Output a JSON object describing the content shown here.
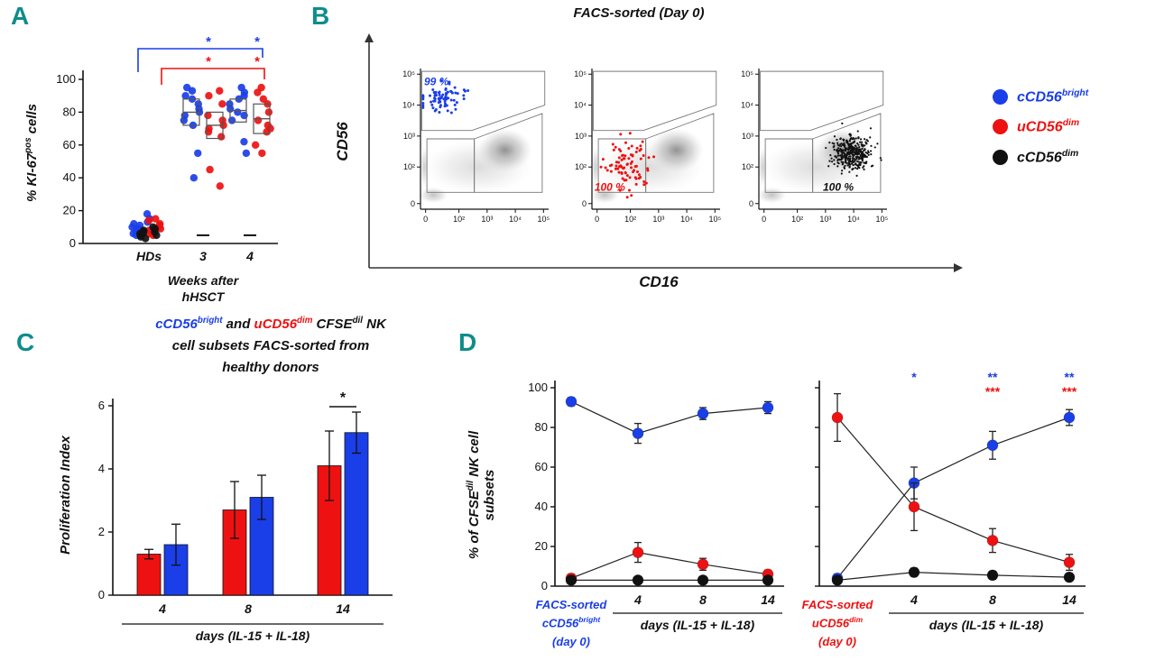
{
  "figure": {
    "background": "#ffffff",
    "panel_letter_color": "#0f8c8c"
  },
  "colors": {
    "blue": "#1a3ee8",
    "red": "#ee1111",
    "black": "#111111"
  },
  "panelA": {
    "letter": "A",
    "ylabel": [
      {
        "t": "% KI-67"
      },
      {
        "t": "pos",
        "sup": true
      },
      {
        "t": " cells"
      }
    ]
  },
  "panelB": {
    "letter": "B",
    "title": "FACS-sorted (Day 0)",
    "ylabel": "CD56",
    "xlabel": "CD16"
  },
  "panelC": {
    "letter": "C",
    "ylabel": "Proliferation Index",
    "title": [
      {
        "t": "cCD56",
        "c": "#1a3ee8"
      },
      {
        "t": "bright",
        "sup": true,
        "c": "#1a3ee8"
      },
      {
        "t": " and ",
        "c": "#111111"
      },
      {
        "t": "uCD56",
        "c": "#ee1111"
      },
      {
        "t": "dim",
        "sup": true,
        "c": "#ee1111"
      },
      {
        "t": " CFSE",
        "c": "#111111"
      },
      {
        "t": "dil",
        "sup": true,
        "c": "#111111"
      },
      {
        "t": " NK",
        "c": "#111111"
      },
      {
        "br": true
      },
      {
        "t": "cell subsets FACS-sorted from",
        "c": "#111111"
      },
      {
        "br": true
      },
      {
        "t": "healthy donors",
        "c": "#111111"
      }
    ]
  },
  "panelD": {
    "letter": "D",
    "ylabel": [
      {
        "t": "% of CFSE"
      },
      {
        "t": "dil",
        "sup": true
      },
      {
        "t": " NK  cell"
      },
      {
        "br": true
      },
      {
        "t": "subsets"
      }
    ],
    "left_x0_label": [
      {
        "t": "FACS-sorted"
      },
      {
        "br": true
      },
      {
        "t": "cCD56"
      },
      {
        "t": "bright",
        "sup": true
      },
      {
        "br": true
      },
      {
        "t": "(day 0)"
      }
    ],
    "right_x0_label": [
      {
        "t": "FACS-sorted"
      },
      {
        "br": true
      },
      {
        "t": "uCD56"
      },
      {
        "t": "dim",
        "sup": true
      },
      {
        "br": true
      },
      {
        "t": "(day 0)"
      }
    ]
  },
  "legend": {
    "items": [
      {
        "name": "cCD56bright",
        "color": "#1a3ee8",
        "text": [
          {
            "t": "cCD56"
          },
          {
            "t": "bright",
            "sup": true
          }
        ]
      },
      {
        "name": "uCD56dim",
        "color": "#ee1111",
        "text": [
          {
            "t": "uCD56"
          },
          {
            "t": "dim",
            "sup": true
          }
        ]
      },
      {
        "name": "cCD56dim",
        "color": "#111111",
        "text": [
          {
            "t": "cCD56"
          },
          {
            "t": "dim",
            "sup": true
          }
        ]
      }
    ]
  },
  "chart_data": [
    {
      "id": "A",
      "type": "scatter",
      "ylabel": "% KI-67pos cells",
      "ylim": [
        0,
        100
      ],
      "yticks": [
        0,
        20,
        40,
        60,
        80,
        100
      ],
      "categories": [
        "HDs",
        "3",
        "4"
      ],
      "xlabel_line1": "Weeks after",
      "xlabel_line2": "hHSCT",
      "series": [
        {
          "name": "cCD56bright",
          "color": "#1a3ee8",
          "values": [
            [
              5,
              6,
              7,
              8,
              9,
              10,
              11,
              12,
              13,
              15,
              18,
              8
            ],
            [
              40,
              55,
              72,
              75,
              78,
              80,
              82,
              85,
              88,
              90,
              93,
              95
            ],
            [
              55,
              62,
              75,
              78,
              80,
              82,
              85,
              88,
              90,
              92,
              95
            ]
          ]
        },
        {
          "name": "uCD56dim",
          "color": "#ee1111",
          "values": [
            [
              5,
              6,
              7,
              8,
              9,
              10,
              11,
              12,
              14,
              15
            ],
            [
              35,
              45,
              65,
              68,
              70,
              72,
              75,
              78,
              85,
              90,
              93
            ],
            [
              55,
              60,
              68,
              70,
              72,
              75,
              80,
              85,
              88,
              92,
              95
            ]
          ]
        },
        {
          "name": "cCD56dim",
          "color": "#111111",
          "values": [
            [
              3,
              4,
              5,
              5,
              6,
              6,
              7,
              7,
              8,
              9,
              10
            ],
            [],
            []
          ]
        }
      ],
      "mean_boxes": [
        {
          "cat": 1,
          "series": 0,
          "mean": 80,
          "sd": 8
        },
        {
          "cat": 1,
          "series": 1,
          "mean": 72,
          "sd": 8
        },
        {
          "cat": 2,
          "series": 0,
          "mean": 81,
          "sd": 7
        },
        {
          "cat": 2,
          "series": 1,
          "mean": 76,
          "sd": 9
        }
      ],
      "dashes": [
        {
          "cat": 1,
          "y": 5
        },
        {
          "cat": 2,
          "y": 5
        }
      ],
      "sig": [
        {
          "color": "#1a3ee8",
          "stars": [
            "*",
            "*"
          ]
        },
        {
          "color": "#ee1111",
          "stars": [
            "*",
            "*"
          ]
        }
      ]
    },
    {
      "id": "B",
      "type": "facs-density",
      "title": "FACS-sorted (Day 0)",
      "xlabel": "CD16",
      "ylabel": "CD56",
      "axis_ticks": [
        "0",
        "10²",
        "10³",
        "10⁴",
        "10⁵"
      ],
      "plots": [
        {
          "name": "cCD56bright-sort",
          "gate_label": "99 %",
          "label_color": "#1a3ee8",
          "dot_color": "#1a3ee8",
          "dot_count": 75,
          "dot_region": "bright",
          "label_pos": "top-left"
        },
        {
          "name": "uCD56dim-sort",
          "gate_label": "100 %",
          "label_color": "#ee1111",
          "dot_color": "#ee1111",
          "dot_count": 85,
          "dot_region": "dim-left",
          "label_pos": "bottom-left"
        },
        {
          "name": "cCD56dim-sort",
          "gate_label": "100 %",
          "label_color": "#111111",
          "dot_color": "#111111",
          "dot_count": 380,
          "dot_region": "dim-right",
          "label_pos": "bottom-right"
        }
      ]
    },
    {
      "id": "C",
      "type": "bar",
      "ylabel": "Proliferation Index",
      "xlabel": "days (IL-15 + IL-18)",
      "categories": [
        "4",
        "8",
        "14"
      ],
      "ylim": [
        0,
        6
      ],
      "yticks": [
        0,
        2,
        4,
        6
      ],
      "series": [
        {
          "name": "uCD56dim",
          "color": "#ee1111",
          "values": [
            1.3,
            2.7,
            4.1
          ],
          "errors": [
            0.15,
            0.9,
            1.1
          ]
        },
        {
          "name": "cCD56bright",
          "color": "#1a3ee8",
          "values": [
            1.6,
            3.1,
            5.15
          ],
          "errors": [
            0.65,
            0.7,
            0.65
          ]
        }
      ],
      "sig": [
        {
          "cat": 2,
          "label": "*"
        }
      ]
    },
    {
      "id": "D-left",
      "type": "line",
      "ylabel": "% of CFSEdil NK cell subsets",
      "xlabel": "days (IL-15 + IL-18)",
      "x_categories": [
        "FACS-sorted cCD56bright (day 0)",
        "4",
        "8",
        "14"
      ],
      "ylim": [
        0,
        100
      ],
      "yticks": [
        0,
        20,
        40,
        60,
        80,
        100
      ],
      "show_ytick_labels": true,
      "series": [
        {
          "name": "cCD56bright",
          "color": "#1a3ee8",
          "values": [
            93,
            77,
            87,
            90
          ],
          "errors": [
            2,
            5,
            3,
            3
          ]
        },
        {
          "name": "uCD56dim",
          "color": "#ee1111",
          "values": [
            4,
            17,
            11,
            6
          ],
          "errors": [
            2,
            5,
            3,
            2
          ]
        },
        {
          "name": "cCD56dim",
          "color": "#111111",
          "values": [
            3,
            3,
            3,
            3
          ],
          "errors": [
            1,
            1,
            1,
            1
          ]
        }
      ],
      "sig": []
    },
    {
      "id": "D-right",
      "type": "line",
      "ylabel": "% of CFSEdil NK cell subsets",
      "xlabel": "days (IL-15 + IL-18)",
      "x_categories": [
        "FACS-sorted uCD56dim (day 0)",
        "4",
        "8",
        "14"
      ],
      "ylim": [
        0,
        100
      ],
      "yticks": [
        0,
        20,
        40,
        60,
        80,
        100
      ],
      "show_ytick_labels": false,
      "series": [
        {
          "name": "cCD56bright",
          "color": "#1a3ee8",
          "values": [
            4,
            52,
            71,
            85
          ],
          "errors": [
            2,
            8,
            7,
            4
          ]
        },
        {
          "name": "uCD56dim",
          "color": "#ee1111",
          "values": [
            85,
            40,
            23,
            12
          ],
          "errors": [
            12,
            12,
            6,
            4
          ]
        },
        {
          "name": "cCD56dim",
          "color": "#111111",
          "values": [
            3,
            7,
            5.5,
            4.5
          ],
          "errors": [
            1,
            2,
            2,
            1
          ]
        }
      ],
      "sig": [
        {
          "x": 1,
          "rows": [
            {
              "t": "*",
              "c": "#1a3ee8"
            }
          ]
        },
        {
          "x": 2,
          "rows": [
            {
              "t": "**",
              "c": "#1a3ee8"
            },
            {
              "t": "***",
              "c": "#ee1111"
            }
          ]
        },
        {
          "x": 3,
          "rows": [
            {
              "t": "**",
              "c": "#1a3ee8"
            },
            {
              "t": "***",
              "c": "#ee1111"
            }
          ]
        }
      ]
    }
  ]
}
